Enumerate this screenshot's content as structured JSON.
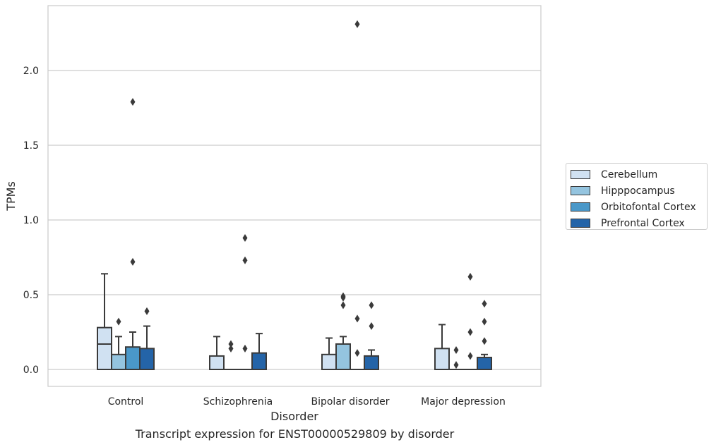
{
  "chart_data": {
    "type": "box",
    "xlabel": "Disorder",
    "ylabel": "TPMs",
    "categories": [
      "Control",
      "Schizophrenia",
      "Bipolar disorder",
      "Major depression"
    ],
    "yticks": [
      "0.0",
      "0.5",
      "1.0",
      "1.5",
      "2.0"
    ],
    "ylim": [
      -0.11,
      2.43
    ],
    "grid": "horizontal",
    "legend_position": "right",
    "series": [
      {
        "name": "Cerebellum",
        "color": "#d0e1f2",
        "boxes": [
          {
            "whislo": 0,
            "q1": 0,
            "med": 0.17,
            "q3": 0.28,
            "whishi": 0.64,
            "fliers": []
          },
          {
            "whislo": 0,
            "q1": 0,
            "med": 0,
            "q3": 0.09,
            "whishi": 0.22,
            "fliers": []
          },
          {
            "whislo": 0,
            "q1": 0,
            "med": 0,
            "q3": 0.1,
            "whishi": 0.21,
            "fliers": []
          },
          {
            "whislo": 0,
            "q1": 0,
            "med": 0,
            "q3": 0.14,
            "whishi": 0.3,
            "fliers": []
          }
        ]
      },
      {
        "name": "Hipppocampus",
        "color": "#94c4df",
        "boxes": [
          {
            "whislo": 0,
            "q1": 0,
            "med": 0,
            "q3": 0.1,
            "whishi": 0.22,
            "fliers": [
              0.32
            ]
          },
          {
            "whislo": 0,
            "q1": 0,
            "med": 0,
            "q3": 0,
            "whishi": 0,
            "fliers": [
              0.14,
              0.17
            ]
          },
          {
            "whislo": 0,
            "q1": 0,
            "med": 0,
            "q3": 0.17,
            "whishi": 0.22,
            "fliers": [
              0.43,
              0.48,
              0.49
            ]
          },
          {
            "whislo": 0,
            "q1": 0,
            "med": 0,
            "q3": 0,
            "whishi": 0,
            "fliers": [
              0.03,
              0.13
            ]
          }
        ]
      },
      {
        "name": "Orbitofontal Cortex",
        "color": "#4a98c9",
        "boxes": [
          {
            "whislo": 0,
            "q1": 0,
            "med": 0,
            "q3": 0.15,
            "whishi": 0.25,
            "fliers": [
              0.72,
              1.79
            ]
          },
          {
            "whislo": 0,
            "q1": 0,
            "med": 0,
            "q3": 0,
            "whishi": 0,
            "fliers": [
              0.14,
              0.73,
              0.88
            ]
          },
          {
            "whislo": 0,
            "q1": 0,
            "med": 0,
            "q3": 0,
            "whishi": 0,
            "fliers": [
              0.11,
              0.34,
              2.31
            ]
          },
          {
            "whislo": 0,
            "q1": 0,
            "med": 0,
            "q3": 0,
            "whishi": 0,
            "fliers": [
              0.09,
              0.25,
              0.62
            ]
          }
        ]
      },
      {
        "name": "Prefrontal Cortex",
        "color": "#2464a8",
        "boxes": [
          {
            "whislo": 0,
            "q1": 0,
            "med": 0,
            "q3": 0.14,
            "whishi": 0.29,
            "fliers": [
              0.39
            ]
          },
          {
            "whislo": 0,
            "q1": 0,
            "med": 0,
            "q3": 0.11,
            "whishi": 0.24,
            "fliers": []
          },
          {
            "whislo": 0,
            "q1": 0,
            "med": 0,
            "q3": 0.09,
            "whishi": 0.13,
            "fliers": [
              0.29,
              0.43
            ]
          },
          {
            "whislo": 0,
            "q1": 0,
            "med": 0,
            "q3": 0.08,
            "whishi": 0.1,
            "fliers": [
              0.19,
              0.32,
              0.44
            ]
          }
        ]
      }
    ]
  },
  "caption": "Transcript expression for ENST00000529809 by disorder"
}
